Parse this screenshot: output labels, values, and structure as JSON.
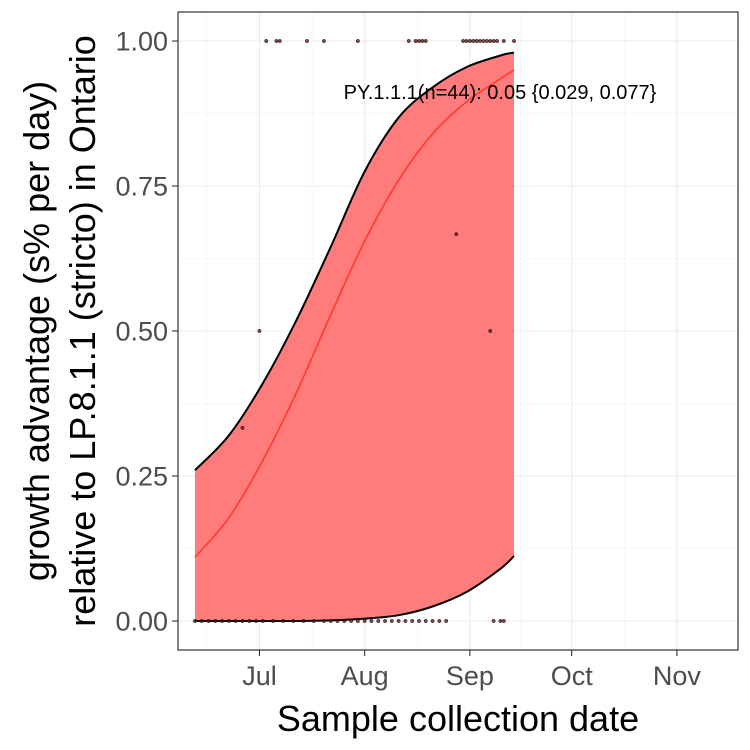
{
  "chart_data": {
    "type": "line",
    "title": "",
    "xlabel": "Sample collection date",
    "ylabel_lines": [
      "growth advantage (s% per day)",
      "relative to LP.8.1.1 (stricto) in Ontario"
    ],
    "x_axis": {
      "type": "date",
      "range": [
        "2025-06-07",
        "2025-11-19"
      ],
      "ticks": [
        {
          "date": "2025-07-01",
          "label": "Jul"
        },
        {
          "date": "2025-08-01",
          "label": "Aug"
        },
        {
          "date": "2025-09-01",
          "label": "Sep"
        },
        {
          "date": "2025-10-01",
          "label": "Oct"
        },
        {
          "date": "2025-11-01",
          "label": "Nov"
        }
      ]
    },
    "y_axis": {
      "range": [
        -0.05,
        1.05
      ],
      "ticks": [
        {
          "value": 0,
          "label": "0.00"
        },
        {
          "value": 0.25,
          "label": "0.25"
        },
        {
          "value": 0.5,
          "label": "0.50"
        },
        {
          "value": 0.75,
          "label": "0.75"
        },
        {
          "value": 1,
          "label": "1.00"
        }
      ]
    },
    "grid": true,
    "annotation": "PY.1.1.1(n=44): 0.05 {0.029, 0.077}",
    "fit": {
      "x": [
        "2025-06-12",
        "2025-06-22",
        "2025-07-02",
        "2025-07-12",
        "2025-07-22",
        "2025-08-01",
        "2025-08-11",
        "2025-08-21",
        "2025-08-31",
        "2025-09-10",
        "2025-09-14"
      ],
      "mean": [
        0.11,
        0.178,
        0.277,
        0.395,
        0.528,
        0.655,
        0.76,
        0.84,
        0.895,
        0.935,
        0.95
      ],
      "upper": [
        0.26,
        0.32,
        0.41,
        0.52,
        0.645,
        0.775,
        0.868,
        0.92,
        0.955,
        0.975,
        0.98
      ],
      "lower": [
        0.0,
        0.0,
        0.0,
        0.0,
        0.001,
        0.004,
        0.01,
        0.025,
        0.05,
        0.09,
        0.112
      ],
      "line_color": "#ff3b30",
      "ribbon_color": "#ff6e6e"
    },
    "points": [
      {
        "x": "2025-06-12",
        "y": 0
      },
      {
        "x": "2025-06-14",
        "y": 0
      },
      {
        "x": "2025-06-16",
        "y": 0
      },
      {
        "x": "2025-06-18",
        "y": 0
      },
      {
        "x": "2025-06-20",
        "y": 0
      },
      {
        "x": "2025-06-22",
        "y": 0
      },
      {
        "x": "2025-06-24",
        "y": 0
      },
      {
        "x": "2025-06-26",
        "y": 0
      },
      {
        "x": "2025-06-28",
        "y": 0
      },
      {
        "x": "2025-06-30",
        "y": 0
      },
      {
        "x": "2025-07-02",
        "y": 0
      },
      {
        "x": "2025-07-05",
        "y": 0
      },
      {
        "x": "2025-07-08",
        "y": 0
      },
      {
        "x": "2025-07-11",
        "y": 0
      },
      {
        "x": "2025-07-14",
        "y": 0
      },
      {
        "x": "2025-07-17",
        "y": 0
      },
      {
        "x": "2025-07-20",
        "y": 0
      },
      {
        "x": "2025-07-22",
        "y": 0
      },
      {
        "x": "2025-07-24",
        "y": 0
      },
      {
        "x": "2025-07-26",
        "y": 0
      },
      {
        "x": "2025-07-28",
        "y": 0
      },
      {
        "x": "2025-07-30",
        "y": 0
      },
      {
        "x": "2025-08-01",
        "y": 0
      },
      {
        "x": "2025-08-03",
        "y": 0
      },
      {
        "x": "2025-08-05",
        "y": 0
      },
      {
        "x": "2025-08-07",
        "y": 0
      },
      {
        "x": "2025-08-09",
        "y": 0
      },
      {
        "x": "2025-08-11",
        "y": 0
      },
      {
        "x": "2025-08-13",
        "y": 0
      },
      {
        "x": "2025-08-15",
        "y": 0
      },
      {
        "x": "2025-08-17",
        "y": 0
      },
      {
        "x": "2025-08-19",
        "y": 0
      },
      {
        "x": "2025-08-21",
        "y": 0
      },
      {
        "x": "2025-08-23",
        "y": 0
      },
      {
        "x": "2025-08-25",
        "y": 0
      },
      {
        "x": "2025-09-08",
        "y": 0
      },
      {
        "x": "2025-09-10",
        "y": 0
      },
      {
        "x": "2025-09-11",
        "y": 0
      },
      {
        "x": "2025-06-26",
        "y": 0.333
      },
      {
        "x": "2025-07-01",
        "y": 0.5
      },
      {
        "x": "2025-08-28",
        "y": 0.667
      },
      {
        "x": "2025-09-07",
        "y": 0.5
      },
      {
        "x": "2025-07-03",
        "y": 1
      },
      {
        "x": "2025-07-06",
        "y": 1
      },
      {
        "x": "2025-07-07",
        "y": 1
      },
      {
        "x": "2025-07-15",
        "y": 1
      },
      {
        "x": "2025-07-20",
        "y": 1
      },
      {
        "x": "2025-07-30",
        "y": 1
      },
      {
        "x": "2025-08-14",
        "y": 1
      },
      {
        "x": "2025-08-16",
        "y": 1
      },
      {
        "x": "2025-08-17",
        "y": 1
      },
      {
        "x": "2025-08-18",
        "y": 1
      },
      {
        "x": "2025-08-19",
        "y": 1
      },
      {
        "x": "2025-08-30",
        "y": 1
      },
      {
        "x": "2025-08-31",
        "y": 1
      },
      {
        "x": "2025-09-01",
        "y": 1
      },
      {
        "x": "2025-09-02",
        "y": 1
      },
      {
        "x": "2025-09-03",
        "y": 1
      },
      {
        "x": "2025-09-04",
        "y": 1
      },
      {
        "x": "2025-09-05",
        "y": 1
      },
      {
        "x": "2025-09-06",
        "y": 1
      },
      {
        "x": "2025-09-07",
        "y": 1
      },
      {
        "x": "2025-09-08",
        "y": 1
      },
      {
        "x": "2025-09-09",
        "y": 1
      },
      {
        "x": "2025-09-11",
        "y": 1
      },
      {
        "x": "2025-09-14",
        "y": 1
      }
    ],
    "point_color": "#5a1e1e"
  }
}
